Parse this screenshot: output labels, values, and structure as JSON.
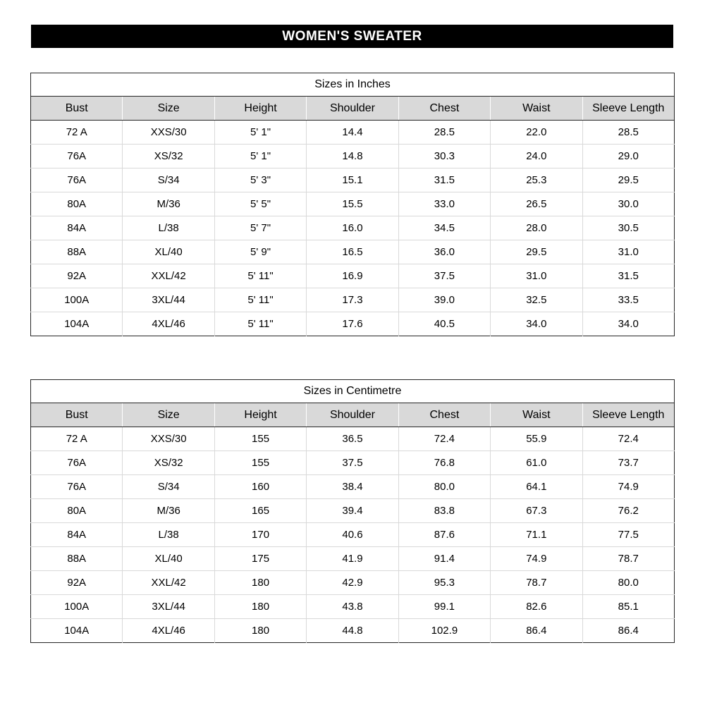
{
  "page_title": "WOMEN'S SWEATER",
  "colors": {
    "title_bar_bg": "#000000",
    "title_bar_text": "#ffffff",
    "header_row_bg": "#d9d9d9",
    "grid_line": "#d9d9d9",
    "outer_border": "#262626"
  },
  "tables": [
    {
      "title": "Sizes in Inches",
      "columns": [
        "Bust",
        "Size",
        "Height",
        "Shoulder",
        "Chest",
        "Waist",
        "Sleeve Length"
      ],
      "rows": [
        [
          "72 A",
          "XXS/30",
          "5' 1\"",
          "14.4",
          "28.5",
          "22.0",
          "28.5"
        ],
        [
          "76A",
          "XS/32",
          "5' 1\"",
          "14.8",
          "30.3",
          "24.0",
          "29.0"
        ],
        [
          "76A",
          "S/34",
          "5' 3\"",
          "15.1",
          "31.5",
          "25.3",
          "29.5"
        ],
        [
          "80A",
          "M/36",
          "5' 5\"",
          "15.5",
          "33.0",
          "26.5",
          "30.0"
        ],
        [
          "84A",
          "L/38",
          "5' 7\"",
          "16.0",
          "34.5",
          "28.0",
          "30.5"
        ],
        [
          "88A",
          "XL/40",
          "5' 9\"",
          "16.5",
          "36.0",
          "29.5",
          "31.0"
        ],
        [
          "92A",
          "XXL/42",
          "5' 11\"",
          "16.9",
          "37.5",
          "31.0",
          "31.5"
        ],
        [
          "100A",
          "3XL/44",
          "5' 11\"",
          "17.3",
          "39.0",
          "32.5",
          "33.5"
        ],
        [
          "104A",
          "4XL/46",
          "5' 11\"",
          "17.6",
          "40.5",
          "34.0",
          "34.0"
        ]
      ]
    },
    {
      "title": "Sizes in Centimetre",
      "columns": [
        "Bust",
        "Size",
        "Height",
        "Shoulder",
        "Chest",
        "Waist",
        "Sleeve Length"
      ],
      "rows": [
        [
          "72 A",
          "XXS/30",
          "155",
          "36.5",
          "72.4",
          "55.9",
          "72.4"
        ],
        [
          "76A",
          "XS/32",
          "155",
          "37.5",
          "76.8",
          "61.0",
          "73.7"
        ],
        [
          "76A",
          "S/34",
          "160",
          "38.4",
          "80.0",
          "64.1",
          "74.9"
        ],
        [
          "80A",
          "M/36",
          "165",
          "39.4",
          "83.8",
          "67.3",
          "76.2"
        ],
        [
          "84A",
          "L/38",
          "170",
          "40.6",
          "87.6",
          "71.1",
          "77.5"
        ],
        [
          "88A",
          "XL/40",
          "175",
          "41.9",
          "91.4",
          "74.9",
          "78.7"
        ],
        [
          "92A",
          "XXL/42",
          "180",
          "42.9",
          "95.3",
          "78.7",
          "80.0"
        ],
        [
          "100A",
          "3XL/44",
          "180",
          "43.8",
          "99.1",
          "82.6",
          "85.1"
        ],
        [
          "104A",
          "4XL/46",
          "180",
          "44.8",
          "102.9",
          "86.4",
          "86.4"
        ]
      ]
    }
  ]
}
